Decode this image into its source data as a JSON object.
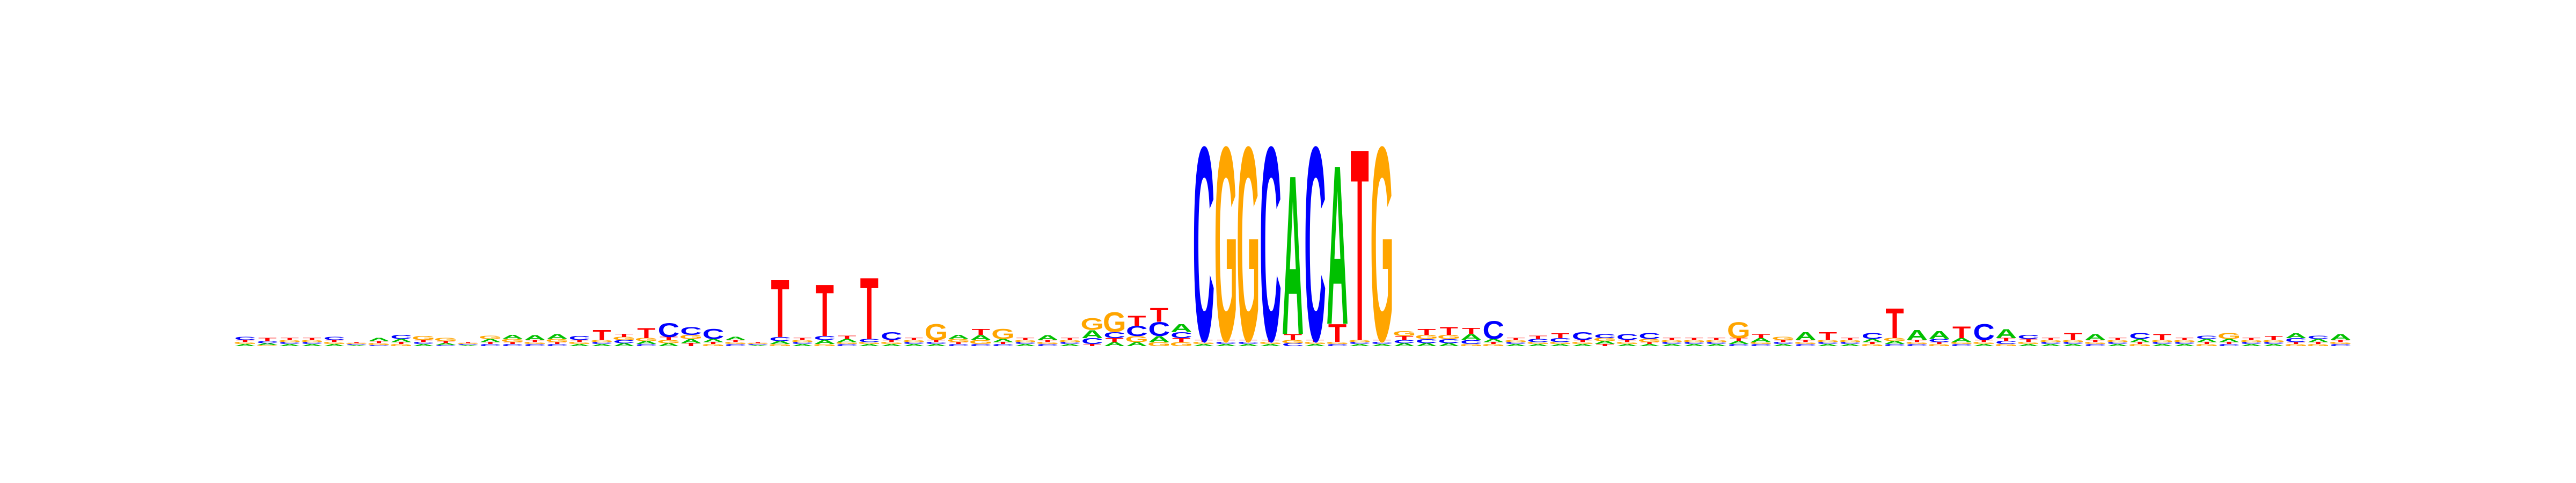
{
  "colors": {
    "A": "#00c000",
    "C": "#0000ff",
    "G": "#ffa500",
    "T": "#ff0000"
  },
  "chart_data": {
    "type": "sequence_logo",
    "alphabet": [
      "A",
      "C",
      "G",
      "T"
    ],
    "unit": "bits",
    "ylim": [
      0,
      2
    ],
    "axes_visible": false,
    "positions": [
      {
        "A": 0.02,
        "C": 0.03,
        "G": 0.02,
        "T": 0.02
      },
      {
        "A": 0.02,
        "C": 0.02,
        "G": 0.01,
        "T": 0.03
      },
      {
        "A": 0.02,
        "C": 0.02,
        "G": 0.02,
        "T": 0.02
      },
      {
        "A": 0.02,
        "C": 0.02,
        "G": 0.02,
        "T": 0.02
      },
      {
        "A": 0.02,
        "C": 0.03,
        "G": 0.02,
        "T": 0.02
      },
      {
        "A": 0.01,
        "C": 0.01,
        "G": 0.01,
        "T": 0.01
      },
      {
        "A": 0.03,
        "C": 0.01,
        "G": 0.02,
        "T": 0.02
      },
      {
        "A": 0.03,
        "C": 0.04,
        "G": 0.02,
        "T": 0.02
      },
      {
        "A": 0.02,
        "C": 0.02,
        "G": 0.04,
        "T": 0.02
      },
      {
        "A": 0.02,
        "C": 0.01,
        "G": 0.03,
        "T": 0.02
      },
      {
        "A": 0.01,
        "C": 0.01,
        "G": 0.01,
        "T": 0.01
      },
      {
        "A": 0.03,
        "C": 0.02,
        "G": 0.03,
        "T": 0.02
      },
      {
        "A": 0.04,
        "C": 0.02,
        "G": 0.03,
        "T": 0.02
      },
      {
        "A": 0.05,
        "C": 0.02,
        "G": 0.02,
        "T": 0.02
      },
      {
        "A": 0.05,
        "C": 0.02,
        "G": 0.03,
        "T": 0.02
      },
      {
        "A": 0.02,
        "C": 0.04,
        "G": 0.02,
        "T": 0.02
      },
      {
        "A": 0.02,
        "C": 0.02,
        "G": 0.02,
        "T": 0.1
      },
      {
        "A": 0.03,
        "C": 0.03,
        "G": 0.03,
        "T": 0.03
      },
      {
        "A": 0.03,
        "C": 0.02,
        "G": 0.03,
        "T": 0.1
      },
      {
        "A": 0.03,
        "C": 0.14,
        "G": 0.03,
        "T": 0.03
      },
      {
        "A": 0.04,
        "C": 0.08,
        "G": 0.04,
        "T": 0.03
      },
      {
        "A": 0.03,
        "C": 0.1,
        "G": 0.02,
        "T": 0.02
      },
      {
        "A": 0.03,
        "C": 0.02,
        "G": 0.02,
        "T": 0.02
      },
      {
        "A": 0.01,
        "C": 0.01,
        "G": 0.01,
        "T": 0.01
      },
      {
        "A": 0.03,
        "C": 0.04,
        "G": 0.02,
        "T": 0.58
      },
      {
        "A": 0.02,
        "C": 0.02,
        "G": 0.02,
        "T": 0.02
      },
      {
        "A": 0.04,
        "C": 0.04,
        "G": 0.02,
        "T": 0.52
      },
      {
        "A": 0.03,
        "C": 0.02,
        "G": 0.02,
        "T": 0.03
      },
      {
        "A": 0.02,
        "C": 0.03,
        "G": 0.02,
        "T": 0.62
      },
      {
        "A": 0.02,
        "C": 0.08,
        "G": 0.02,
        "T": 0.02
      },
      {
        "A": 0.02,
        "C": 0.02,
        "G": 0.02,
        "T": 0.02
      },
      {
        "A": 0.02,
        "C": 0.02,
        "G": 0.16,
        "T": 0.02
      },
      {
        "A": 0.04,
        "C": 0.02,
        "G": 0.03,
        "T": 0.02
      },
      {
        "A": 0.05,
        "C": 0.02,
        "G": 0.04,
        "T": 0.06
      },
      {
        "A": 0.03,
        "C": 0.02,
        "G": 0.1,
        "T": 0.02
      },
      {
        "A": 0.02,
        "C": 0.02,
        "G": 0.02,
        "T": 0.02
      },
      {
        "A": 0.05,
        "C": 0.02,
        "G": 0.02,
        "T": 0.02
      },
      {
        "A": 0.02,
        "C": 0.02,
        "G": 0.02,
        "T": 0.02
      },
      {
        "A": 0.08,
        "C": 0.06,
        "G": 0.12,
        "T": 0.02
      },
      {
        "A": 0.04,
        "C": 0.06,
        "G": 0.2,
        "T": 0.04
      },
      {
        "A": 0.04,
        "C": 0.1,
        "G": 0.06,
        "T": 0.1
      },
      {
        "A": 0.06,
        "C": 0.14,
        "G": 0.04,
        "T": 0.14
      },
      {
        "A": 0.08,
        "C": 0.06,
        "G": 0.04,
        "T": 0.04
      },
      {
        "A": 0.02,
        "C": 1.95,
        "G": 0.02,
        "T": 0.02
      },
      {
        "A": 0.02,
        "C": 0.02,
        "G": 1.95,
        "T": 0.02
      },
      {
        "A": 0.02,
        "C": 0.02,
        "G": 1.95,
        "T": 0.02
      },
      {
        "A": 0.02,
        "C": 1.95,
        "G": 0.02,
        "T": 0.02
      },
      {
        "A": 1.6,
        "C": 0.03,
        "G": 0.03,
        "T": 0.06
      },
      {
        "A": 0.02,
        "C": 1.95,
        "G": 0.02,
        "T": 0.02
      },
      {
        "A": 1.6,
        "C": 0.02,
        "G": 0.02,
        "T": 0.18
      },
      {
        "A": 0.02,
        "C": 0.02,
        "G": 0.02,
        "T": 1.93
      },
      {
        "A": 0.02,
        "C": 0.02,
        "G": 1.95,
        "T": 0.02
      },
      {
        "A": 0.03,
        "C": 0.03,
        "G": 0.05,
        "T": 0.04
      },
      {
        "A": 0.03,
        "C": 0.04,
        "G": 0.04,
        "T": 0.06
      },
      {
        "A": 0.03,
        "C": 0.04,
        "G": 0.04,
        "T": 0.08
      },
      {
        "A": 0.06,
        "C": 0.04,
        "G": 0.02,
        "T": 0.06
      },
      {
        "A": 0.03,
        "C": 0.18,
        "G": 0.02,
        "T": 0.02
      },
      {
        "A": 0.02,
        "C": 0.02,
        "G": 0.02,
        "T": 0.02
      },
      {
        "A": 0.02,
        "C": 0.03,
        "G": 0.02,
        "T": 0.03
      },
      {
        "A": 0.02,
        "C": 0.04,
        "G": 0.02,
        "T": 0.05
      },
      {
        "A": 0.02,
        "C": 0.08,
        "G": 0.02,
        "T": 0.02
      },
      {
        "A": 0.03,
        "C": 0.04,
        "G": 0.03,
        "T": 0.02
      },
      {
        "A": 0.02,
        "C": 0.06,
        "G": 0.02,
        "T": 0.02
      },
      {
        "A": 0.02,
        "C": 0.06,
        "G": 0.03,
        "T": 0.02
      },
      {
        "A": 0.02,
        "C": 0.02,
        "G": 0.02,
        "T": 0.02
      },
      {
        "A": 0.02,
        "C": 0.02,
        "G": 0.02,
        "T": 0.02
      },
      {
        "A": 0.02,
        "C": 0.02,
        "G": 0.02,
        "T": 0.02
      },
      {
        "A": 0.03,
        "C": 0.02,
        "G": 0.16,
        "T": 0.03
      },
      {
        "A": 0.04,
        "C": 0.02,
        "G": 0.02,
        "T": 0.04
      },
      {
        "A": 0.02,
        "C": 0.02,
        "G": 0.03,
        "T": 0.02
      },
      {
        "A": 0.08,
        "C": 0.02,
        "G": 0.02,
        "T": 0.02
      },
      {
        "A": 0.02,
        "C": 0.02,
        "G": 0.02,
        "T": 0.08
      },
      {
        "A": 0.02,
        "C": 0.02,
        "G": 0.02,
        "T": 0.02
      },
      {
        "A": 0.03,
        "C": 0.06,
        "G": 0.02,
        "T": 0.02
      },
      {
        "A": 0.03,
        "C": 0.02,
        "G": 0.03,
        "T": 0.3
      },
      {
        "A": 0.1,
        "C": 0.02,
        "G": 0.02,
        "T": 0.02
      },
      {
        "A": 0.08,
        "C": 0.03,
        "G": 0.02,
        "T": 0.02
      },
      {
        "A": 0.04,
        "C": 0.02,
        "G": 0.02,
        "T": 0.12
      },
      {
        "A": 0.02,
        "C": 0.16,
        "G": 0.02,
        "T": 0.02
      },
      {
        "A": 0.09,
        "C": 0.03,
        "G": 0.02,
        "T": 0.03
      },
      {
        "A": 0.02,
        "C": 0.04,
        "G": 0.02,
        "T": 0.03
      },
      {
        "A": 0.02,
        "C": 0.02,
        "G": 0.02,
        "T": 0.02
      },
      {
        "A": 0.02,
        "C": 0.02,
        "G": 0.02,
        "T": 0.07
      },
      {
        "A": 0.06,
        "C": 0.02,
        "G": 0.02,
        "T": 0.02
      },
      {
        "A": 0.02,
        "C": 0.02,
        "G": 0.02,
        "T": 0.02
      },
      {
        "A": 0.03,
        "C": 0.06,
        "G": 0.02,
        "T": 0.02
      },
      {
        "A": 0.02,
        "C": 0.02,
        "G": 0.02,
        "T": 0.06
      },
      {
        "A": 0.02,
        "C": 0.02,
        "G": 0.02,
        "T": 0.02
      },
      {
        "A": 0.03,
        "C": 0.03,
        "G": 0.02,
        "T": 0.02
      },
      {
        "A": 0.03,
        "C": 0.02,
        "G": 0.06,
        "T": 0.02
      },
      {
        "A": 0.02,
        "C": 0.02,
        "G": 0.02,
        "T": 0.02
      },
      {
        "A": 0.02,
        "C": 0.02,
        "G": 0.02,
        "T": 0.04
      },
      {
        "A": 0.05,
        "C": 0.04,
        "G": 0.02,
        "T": 0.02
      },
      {
        "A": 0.03,
        "C": 0.03,
        "G": 0.02,
        "T": 0.02
      },
      {
        "A": 0.06,
        "C": 0.02,
        "G": 0.02,
        "T": 0.02
      }
    ]
  }
}
